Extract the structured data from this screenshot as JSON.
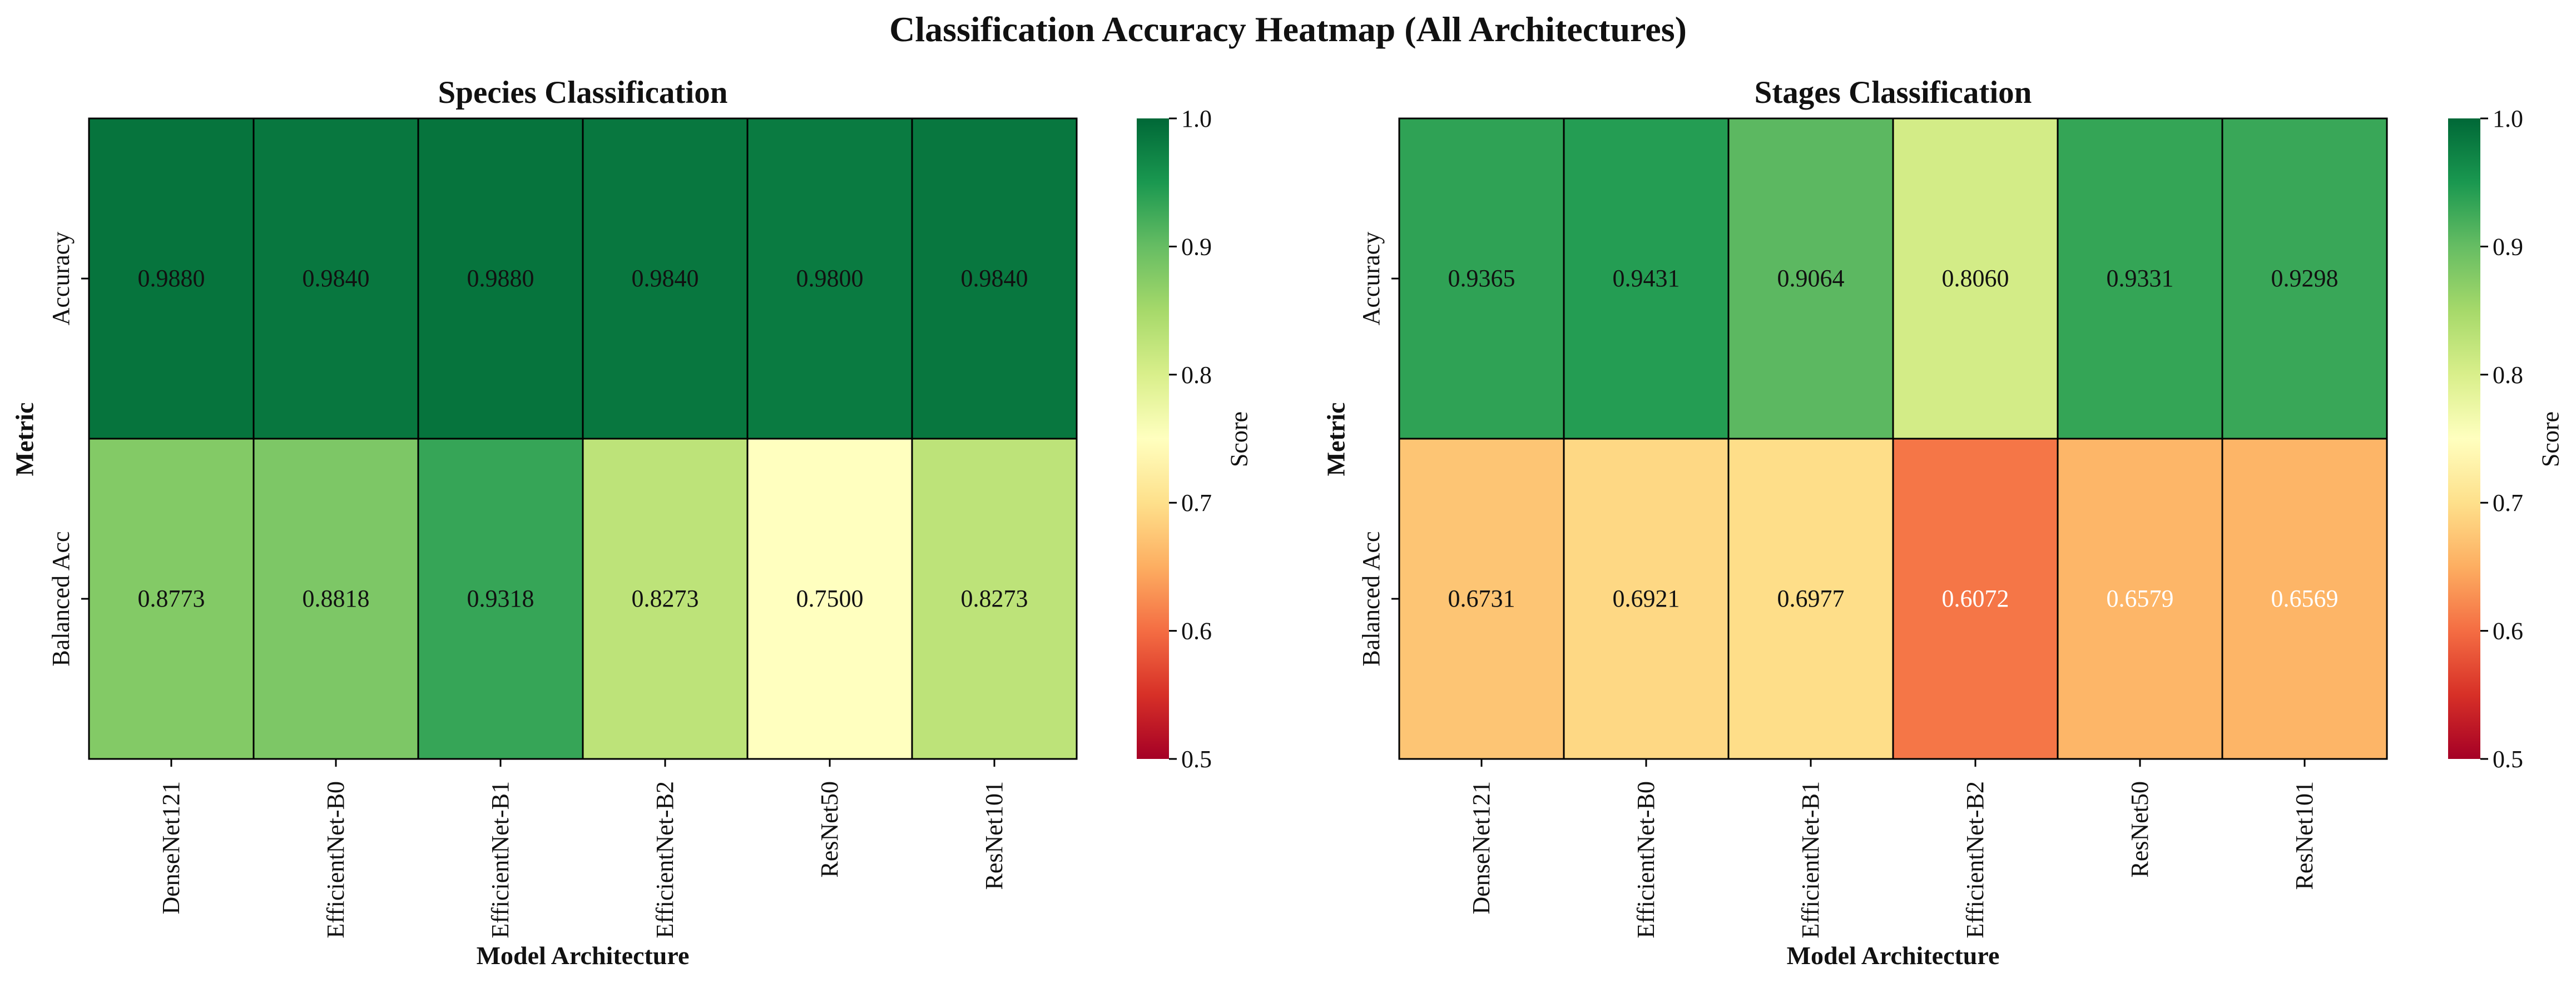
{
  "figure_title": "Classification Accuracy Heatmap (All Architectures)",
  "colormap": {
    "name": "RdYlGn",
    "stops": [
      "#a50026",
      "#d73027",
      "#f46d43",
      "#fdae61",
      "#fee08b",
      "#ffffbf",
      "#d9ef8b",
      "#a6d96a",
      "#66bd63",
      "#1a9850",
      "#006837"
    ]
  },
  "chart_data": [
    {
      "type": "heatmap",
      "title": "Species Classification",
      "xlabel": "Model Architecture",
      "ylabel": "Metric",
      "x_categories": [
        "DenseNet121",
        "EfficientNet-B0",
        "EfficientNet-B1",
        "EfficientNet-B2",
        "ResNet50",
        "ResNet101"
      ],
      "y_categories": [
        "Accuracy",
        "Balanced Acc"
      ],
      "values": [
        [
          0.988,
          0.984,
          0.988,
          0.984,
          0.98,
          0.984
        ],
        [
          0.8773,
          0.8818,
          0.9318,
          0.8273,
          0.75,
          0.8273
        ]
      ],
      "value_format": "0.0000",
      "vmin": 0.5,
      "vmax": 1.0,
      "colorbar": {
        "label": "Score",
        "ticks": [
          "0.5",
          "0.6",
          "0.7",
          "0.8",
          "0.9",
          "1.0"
        ]
      }
    },
    {
      "type": "heatmap",
      "title": "Stages Classification",
      "xlabel": "Model Architecture",
      "ylabel": "Metric",
      "x_categories": [
        "DenseNet121",
        "EfficientNet-B0",
        "EfficientNet-B1",
        "EfficientNet-B2",
        "ResNet50",
        "ResNet101"
      ],
      "y_categories": [
        "Accuracy",
        "Balanced Acc"
      ],
      "values": [
        [
          0.9365,
          0.9431,
          0.9064,
          0.806,
          0.9331,
          0.9298
        ],
        [
          0.6731,
          0.6921,
          0.6977,
          0.6072,
          0.6579,
          0.6569
        ]
      ],
      "value_format": "0.0000",
      "vmin": 0.5,
      "vmax": 1.0,
      "colorbar": {
        "label": "Score",
        "ticks": [
          "0.5",
          "0.6",
          "0.7",
          "0.8",
          "0.9",
          "1.0"
        ]
      }
    }
  ]
}
